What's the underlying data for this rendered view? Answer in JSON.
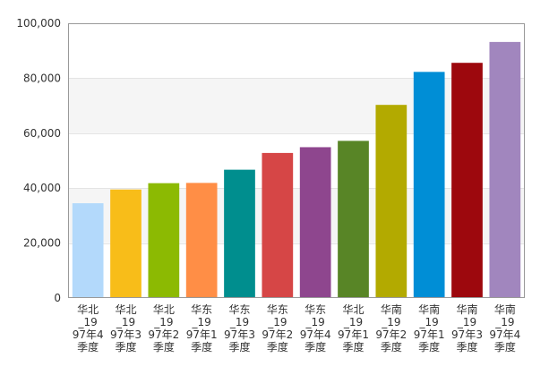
{
  "chart_data": {
    "type": "bar",
    "categories": [
      [
        "华北",
        "_19",
        "97年4",
        "季度"
      ],
      [
        "华北",
        "_19",
        "97年3",
        "季度"
      ],
      [
        "华北",
        "_19",
        "97年2",
        "季度"
      ],
      [
        "华东",
        "_19",
        "97年1",
        "季度"
      ],
      [
        "华东",
        "_19",
        "97年3",
        "季度"
      ],
      [
        "华东",
        "_19",
        "97年2",
        "季度"
      ],
      [
        "华东",
        "_19",
        "97年4",
        "季度"
      ],
      [
        "华北",
        "_19",
        "97年1",
        "季度"
      ],
      [
        "华南",
        "_19",
        "97年2",
        "季度"
      ],
      [
        "华南",
        "_19",
        "97年1",
        "季度"
      ],
      [
        "华南",
        "_19",
        "97年3",
        "季度"
      ],
      [
        "华南",
        "_19",
        "97年4",
        "季度"
      ]
    ],
    "values": [
      34500,
      39500,
      41800,
      41900,
      46700,
      52800,
      54900,
      57200,
      70300,
      82300,
      85600,
      93200
    ],
    "colors": [
      "#b3d9fb",
      "#f8bd19",
      "#8cba02",
      "#ff8e46",
      "#008e8e",
      "#d64646",
      "#8e468e",
      "#588526",
      "#b3aa00",
      "#008ed6",
      "#9d080d",
      "#a186be"
    ],
    "ylim": [
      0,
      100000
    ],
    "yticks": [
      "0",
      "20,000",
      "40,000",
      "60,000",
      "80,000",
      "100,000"
    ],
    "grid": true
  }
}
